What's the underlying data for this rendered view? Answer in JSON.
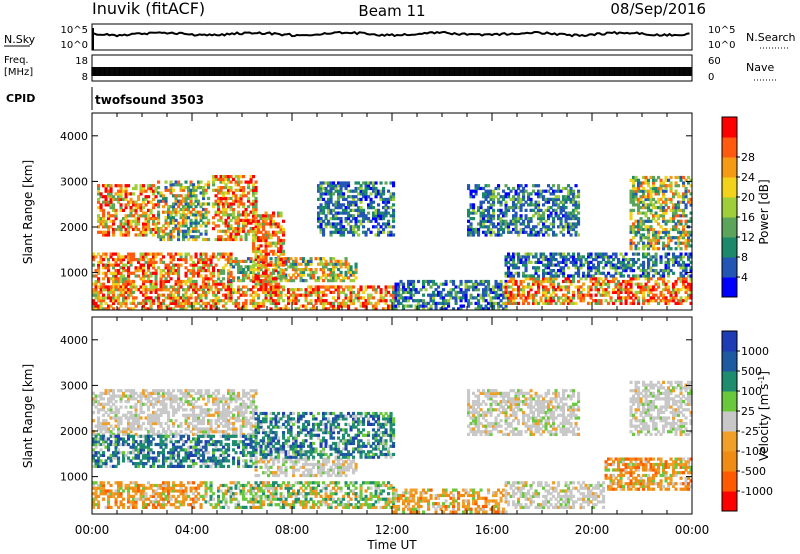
{
  "header": {
    "station": "Inuvik (fitACF)",
    "beam": "Beam 11",
    "date": "08/Sep/2016"
  },
  "noise_panel": {
    "left_label": "N.Sky",
    "left_ticks": [
      "10^5",
      "10^0"
    ],
    "right_label": "N.Search",
    "right_ticks": [
      "10^5",
      "10^0"
    ]
  },
  "freq_panel": {
    "left_label_line1": "Freq.",
    "left_label_line2": "[MHz]",
    "left_ticks": [
      "18",
      "8"
    ],
    "right_label": "Nave",
    "right_ticks": [
      "60",
      "0"
    ]
  },
  "cpid_panel": {
    "label": "CPID",
    "text": "twofsound 3503"
  },
  "x_axis": {
    "label": "Time UT",
    "ticks": [
      "00:00",
      "04:00",
      "08:00",
      "12:00",
      "16:00",
      "20:00",
      "00:00"
    ]
  },
  "colors": {
    "power_scale": [
      "#0000ff",
      "#2255b4",
      "#1c8a6a",
      "#5aa55a",
      "#9ecf3a",
      "#f2d21a",
      "#f59a14",
      "#ff5a10",
      "#ff0000"
    ],
    "velocity_scale": [
      "#1e3cb4",
      "#1e5aa0",
      "#1e8c6e",
      "#6ac83c",
      "#c8c8c8",
      "#f0a028",
      "#f08c14",
      "#ff5a00",
      "#ff0000"
    ]
  },
  "chart_data": [
    {
      "type": "heatmap",
      "title": "",
      "quantity": "Power",
      "xlabel": "Time UT",
      "ylabel": "Slant Range [km]",
      "xlim": [
        "00:00",
        "24:00"
      ],
      "ylim": [
        180,
        4500
      ],
      "y_ticks": [
        1000,
        2000,
        3000,
        4000
      ],
      "colorbar": {
        "label": "Power [dB]",
        "range": [
          0,
          32
        ],
        "ticks": [
          4,
          8,
          12,
          16,
          20,
          24,
          28
        ]
      },
      "regions": [
        {
          "t": [
            0.2,
            2.6
          ],
          "r": [
            1800,
            2900
          ],
          "level": "high"
        },
        {
          "t": [
            2.6,
            4.6
          ],
          "r": [
            1700,
            3000
          ],
          "level": "mid"
        },
        {
          "t": [
            4.8,
            6.5
          ],
          "r": [
            1700,
            3100
          ],
          "level": "high"
        },
        {
          "t": [
            0.0,
            5.5
          ],
          "r": [
            600,
            1400
          ],
          "level": "high"
        },
        {
          "t": [
            5.5,
            10.5
          ],
          "r": [
            800,
            1300
          ],
          "level": "mid"
        },
        {
          "t": [
            6.4,
            7.6
          ],
          "r": [
            600,
            2300
          ],
          "level": "high"
        },
        {
          "t": [
            0.0,
            12.0
          ],
          "r": [
            180,
            700
          ],
          "level": "high"
        },
        {
          "t": [
            12.0,
            16.5
          ],
          "r": [
            180,
            800
          ],
          "level": "low"
        },
        {
          "t": [
            16.5,
            24.0
          ],
          "r": [
            300,
            900
          ],
          "level": "high"
        },
        {
          "t": [
            16.5,
            24.0
          ],
          "r": [
            900,
            1400
          ],
          "level": "low"
        },
        {
          "t": [
            9.0,
            12.0
          ],
          "r": [
            1800,
            3000
          ],
          "level": "low"
        },
        {
          "t": [
            15.0,
            19.5
          ],
          "r": [
            1800,
            2900
          ],
          "level": "low"
        },
        {
          "t": [
            21.5,
            24.0
          ],
          "r": [
            1500,
            3100
          ],
          "level": "mid"
        }
      ]
    },
    {
      "type": "heatmap",
      "title": "",
      "quantity": "Velocity",
      "xlabel": "Time UT",
      "ylabel": "Slant Range [km]",
      "xlim": [
        "00:00",
        "24:00"
      ],
      "ylim": [
        180,
        4500
      ],
      "y_ticks": [
        1000,
        2000,
        3000,
        4000
      ],
      "colorbar": {
        "label": "Velocity [m s^-1]",
        "ticks": [
          "1000",
          "500",
          "100",
          "25",
          "-25",
          "-100",
          "-500",
          "-1000"
        ]
      },
      "regions": [
        {
          "t": [
            0.0,
            6.5
          ],
          "r": [
            1900,
            2900
          ],
          "level": "ground"
        },
        {
          "t": [
            0.0,
            6.5
          ],
          "r": [
            1200,
            1900
          ],
          "level": "toward"
        },
        {
          "t": [
            0.0,
            4.5
          ],
          "r": [
            300,
            900
          ],
          "level": "away"
        },
        {
          "t": [
            4.5,
            12.0
          ],
          "r": [
            300,
            900
          ],
          "level": "weak"
        },
        {
          "t": [
            6.5,
            10.5
          ],
          "r": [
            1000,
            1400
          ],
          "level": "ground"
        },
        {
          "t": [
            6.5,
            12.0
          ],
          "r": [
            1400,
            2400
          ],
          "level": "toward"
        },
        {
          "t": [
            12.0,
            16.5
          ],
          "r": [
            200,
            700
          ],
          "level": "away"
        },
        {
          "t": [
            16.5,
            20.5
          ],
          "r": [
            300,
            900
          ],
          "level": "ground"
        },
        {
          "t": [
            20.5,
            24.0
          ],
          "r": [
            700,
            1400
          ],
          "level": "away"
        },
        {
          "t": [
            21.5,
            24.0
          ],
          "r": [
            1900,
            3100
          ],
          "level": "ground"
        },
        {
          "t": [
            15.0,
            19.5
          ],
          "r": [
            1900,
            2900
          ],
          "level": "ground"
        }
      ]
    }
  ]
}
